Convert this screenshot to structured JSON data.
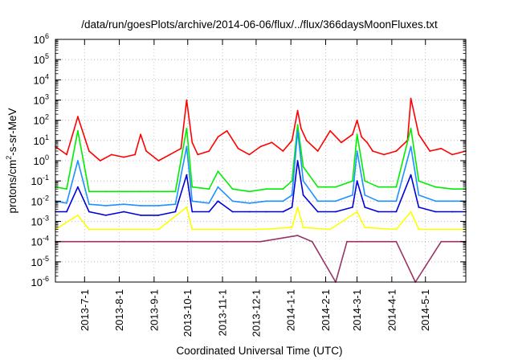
{
  "chart_data": {
    "type": "line",
    "title": "/data/run/goesPlots/archive/2014-06-06/flux/../flux/366daysMoonFluxes.txt",
    "xlabel": "Coordinated Universal Time (UTC)",
    "ylabel": "protons/cm2-s-sr-MeV",
    "ylabel_parts": {
      "before": "protons/cm",
      "sup": "2",
      "after": "-s-sr-MeV"
    },
    "yscale": "log",
    "ylim": [
      1e-06,
      1000000.0
    ],
    "xlim": [
      "2013-06-05",
      "2014-06-06"
    ],
    "grid": true,
    "legend": "none",
    "x_ticks": [
      {
        "date": "2013-07-01",
        "label": "2013-7-1"
      },
      {
        "date": "2013-08-01",
        "label": "2013-8-1"
      },
      {
        "date": "2013-09-01",
        "label": "2013-9-1"
      },
      {
        "date": "2013-10-01",
        "label": "2013-10-1"
      },
      {
        "date": "2013-11-01",
        "label": "2013-11-1"
      },
      {
        "date": "2013-12-01",
        "label": "2013-12-1"
      },
      {
        "date": "2014-01-01",
        "label": "2014-1-1"
      },
      {
        "date": "2014-02-01",
        "label": "2014-2-1"
      },
      {
        "date": "2014-03-01",
        "label": "2014-3-1"
      },
      {
        "date": "2014-04-01",
        "label": "2014-4-1"
      },
      {
        "date": "2014-05-01",
        "label": "2014-5-1"
      }
    ],
    "y_ticks": [
      {
        "exp": -6,
        "label": "10",
        "sup": "-6"
      },
      {
        "exp": -5,
        "label": "10",
        "sup": "-5"
      },
      {
        "exp": -4,
        "label": "10",
        "sup": "-4"
      },
      {
        "exp": -3,
        "label": "10",
        "sup": "-3"
      },
      {
        "exp": -2,
        "label": "10",
        "sup": "-2"
      },
      {
        "exp": -1,
        "label": "10",
        "sup": "-1"
      },
      {
        "exp": 0,
        "label": "10",
        "sup": "0"
      },
      {
        "exp": 1,
        "label": "10",
        "sup": "1"
      },
      {
        "exp": 2,
        "label": "10",
        "sup": "2"
      },
      {
        "exp": 3,
        "label": "10",
        "sup": "3"
      },
      {
        "exp": 4,
        "label": "10",
        "sup": "4"
      },
      {
        "exp": 5,
        "label": "10",
        "sup": "5"
      },
      {
        "exp": 6,
        "label": "10",
        "sup": "6"
      }
    ],
    "series": [
      {
        "color": "#ff0000",
        "x": [
          "2013-06-05",
          "2013-06-15",
          "2013-06-22",
          "2013-06-25",
          "2013-07-05",
          "2013-07-15",
          "2013-07-25",
          "2013-08-05",
          "2013-08-15",
          "2013-08-20",
          "2013-08-25",
          "2013-09-05",
          "2013-09-15",
          "2013-09-25",
          "2013-09-30",
          "2013-10-05",
          "2013-10-10",
          "2013-10-20",
          "2013-10-28",
          "2013-11-05",
          "2013-11-15",
          "2013-11-25",
          "2013-12-05",
          "2013-12-15",
          "2013-12-25",
          "2014-01-02",
          "2014-01-07",
          "2014-01-10",
          "2014-01-15",
          "2014-01-25",
          "2014-02-05",
          "2014-02-15",
          "2014-02-25",
          "2014-03-01",
          "2014-03-05",
          "2014-03-10",
          "2014-03-15",
          "2014-03-25",
          "2014-04-05",
          "2014-04-15",
          "2014-04-18",
          "2014-04-25",
          "2014-05-05",
          "2014-05-15",
          "2014-05-25",
          "2014-06-06"
        ],
        "values": [
          5,
          2,
          40,
          150,
          3,
          1,
          2,
          1.5,
          2,
          20,
          3,
          1,
          2,
          4,
          1000,
          8,
          2,
          3,
          15,
          30,
          4,
          2,
          5,
          8,
          3,
          10,
          300,
          40,
          10,
          3,
          30,
          8,
          20,
          100,
          15,
          8,
          3,
          2,
          3,
          10,
          1200,
          20,
          3,
          4,
          2,
          3
        ]
      },
      {
        "color": "#00ee00",
        "x": [
          "2013-06-05",
          "2013-06-15",
          "2013-06-25",
          "2013-07-05",
          "2013-07-20",
          "2013-08-05",
          "2013-08-20",
          "2013-09-05",
          "2013-09-20",
          "2013-09-30",
          "2013-10-05",
          "2013-10-20",
          "2013-10-28",
          "2013-11-10",
          "2013-11-25",
          "2013-12-10",
          "2013-12-25",
          "2014-01-02",
          "2014-01-07",
          "2014-01-12",
          "2014-01-25",
          "2014-02-10",
          "2014-02-25",
          "2014-03-01",
          "2014-03-08",
          "2014-03-20",
          "2014-04-05",
          "2014-04-18",
          "2014-04-25",
          "2014-05-10",
          "2014-05-25",
          "2014-06-06"
        ],
        "values": [
          0.05,
          0.04,
          30,
          0.03,
          0.03,
          0.03,
          0.03,
          0.03,
          0.03,
          40,
          0.05,
          0.04,
          0.3,
          0.04,
          0.03,
          0.04,
          0.04,
          0.1,
          60,
          0.5,
          0.05,
          0.05,
          0.1,
          20,
          0.1,
          0.05,
          0.05,
          40,
          0.1,
          0.05,
          0.04,
          0.04
        ]
      },
      {
        "color": "#1e90ff",
        "x": [
          "2013-06-05",
          "2013-06-15",
          "2013-06-25",
          "2013-07-05",
          "2013-07-20",
          "2013-08-05",
          "2013-08-20",
          "2013-09-05",
          "2013-09-20",
          "2013-09-30",
          "2013-10-05",
          "2013-10-20",
          "2013-10-28",
          "2013-11-10",
          "2013-11-25",
          "2013-12-10",
          "2013-12-25",
          "2014-01-02",
          "2014-01-07",
          "2014-01-12",
          "2014-01-25",
          "2014-02-10",
          "2014-02-25",
          "2014-03-01",
          "2014-03-08",
          "2014-03-20",
          "2014-04-05",
          "2014-04-18",
          "2014-04-25",
          "2014-05-10",
          "2014-05-25",
          "2014-06-06"
        ],
        "values": [
          0.01,
          0.008,
          1,
          0.007,
          0.006,
          0.007,
          0.006,
          0.006,
          0.007,
          5,
          0.01,
          0.008,
          0.05,
          0.01,
          0.008,
          0.01,
          0.01,
          0.02,
          30,
          0.1,
          0.01,
          0.01,
          0.02,
          3,
          0.02,
          0.01,
          0.01,
          5,
          0.02,
          0.01,
          0.01,
          0.01
        ]
      },
      {
        "color": "#0000dd",
        "x": [
          "2013-06-05",
          "2013-06-15",
          "2013-06-25",
          "2013-07-05",
          "2013-07-20",
          "2013-08-05",
          "2013-08-20",
          "2013-09-05",
          "2013-09-20",
          "2013-09-30",
          "2013-10-05",
          "2013-10-20",
          "2013-10-28",
          "2013-11-10",
          "2013-11-25",
          "2013-12-10",
          "2013-12-25",
          "2014-01-02",
          "2014-01-07",
          "2014-01-12",
          "2014-01-25",
          "2014-02-10",
          "2014-02-25",
          "2014-03-01",
          "2014-03-08",
          "2014-03-20",
          "2014-04-05",
          "2014-04-18",
          "2014-04-25",
          "2014-05-10",
          "2014-05-25",
          "2014-06-06"
        ],
        "values": [
          0.003,
          0.003,
          0.05,
          0.003,
          0.002,
          0.003,
          0.002,
          0.002,
          0.003,
          0.2,
          0.003,
          0.003,
          0.01,
          0.003,
          0.003,
          0.003,
          0.003,
          0.005,
          1,
          0.02,
          0.003,
          0.003,
          0.005,
          0.1,
          0.005,
          0.003,
          0.003,
          0.2,
          0.005,
          0.003,
          0.003,
          0.003
        ]
      },
      {
        "color": "#ffff00",
        "x": [
          "2013-06-05",
          "2013-06-25",
          "2013-07-05",
          "2013-08-05",
          "2013-09-05",
          "2013-09-30",
          "2013-10-05",
          "2013-11-05",
          "2013-12-05",
          "2014-01-02",
          "2014-01-07",
          "2014-01-12",
          "2014-02-05",
          "2014-03-01",
          "2014-03-08",
          "2014-04-05",
          "2014-04-18",
          "2014-04-25",
          "2014-05-15",
          "2014-06-06"
        ],
        "values": [
          0.0004,
          0.002,
          0.0004,
          0.0004,
          0.0004,
          0.005,
          0.0004,
          0.0004,
          0.0004,
          0.0005,
          0.005,
          0.0005,
          0.0004,
          0.003,
          0.0005,
          0.0004,
          0.003,
          0.0004,
          0.0004,
          0.0004
        ]
      },
      {
        "color": "#993366",
        "x": [
          "2013-06-05",
          "2013-07-05",
          "2013-08-05",
          "2013-09-05",
          "2013-10-05",
          "2013-11-05",
          "2013-12-05",
          "2014-01-07",
          "2014-01-20",
          "2014-02-10",
          "2014-02-20",
          "2014-03-05",
          "2014-04-05",
          "2014-04-22",
          "2014-05-15",
          "2014-06-06"
        ],
        "values": [
          0.0001,
          0.0001,
          0.0001,
          0.0001,
          0.0001,
          0.0001,
          0.0001,
          0.0002,
          0.0001,
          1e-06,
          0.0001,
          0.0001,
          0.0001,
          1e-06,
          0.0001,
          0.0001
        ]
      }
    ]
  }
}
